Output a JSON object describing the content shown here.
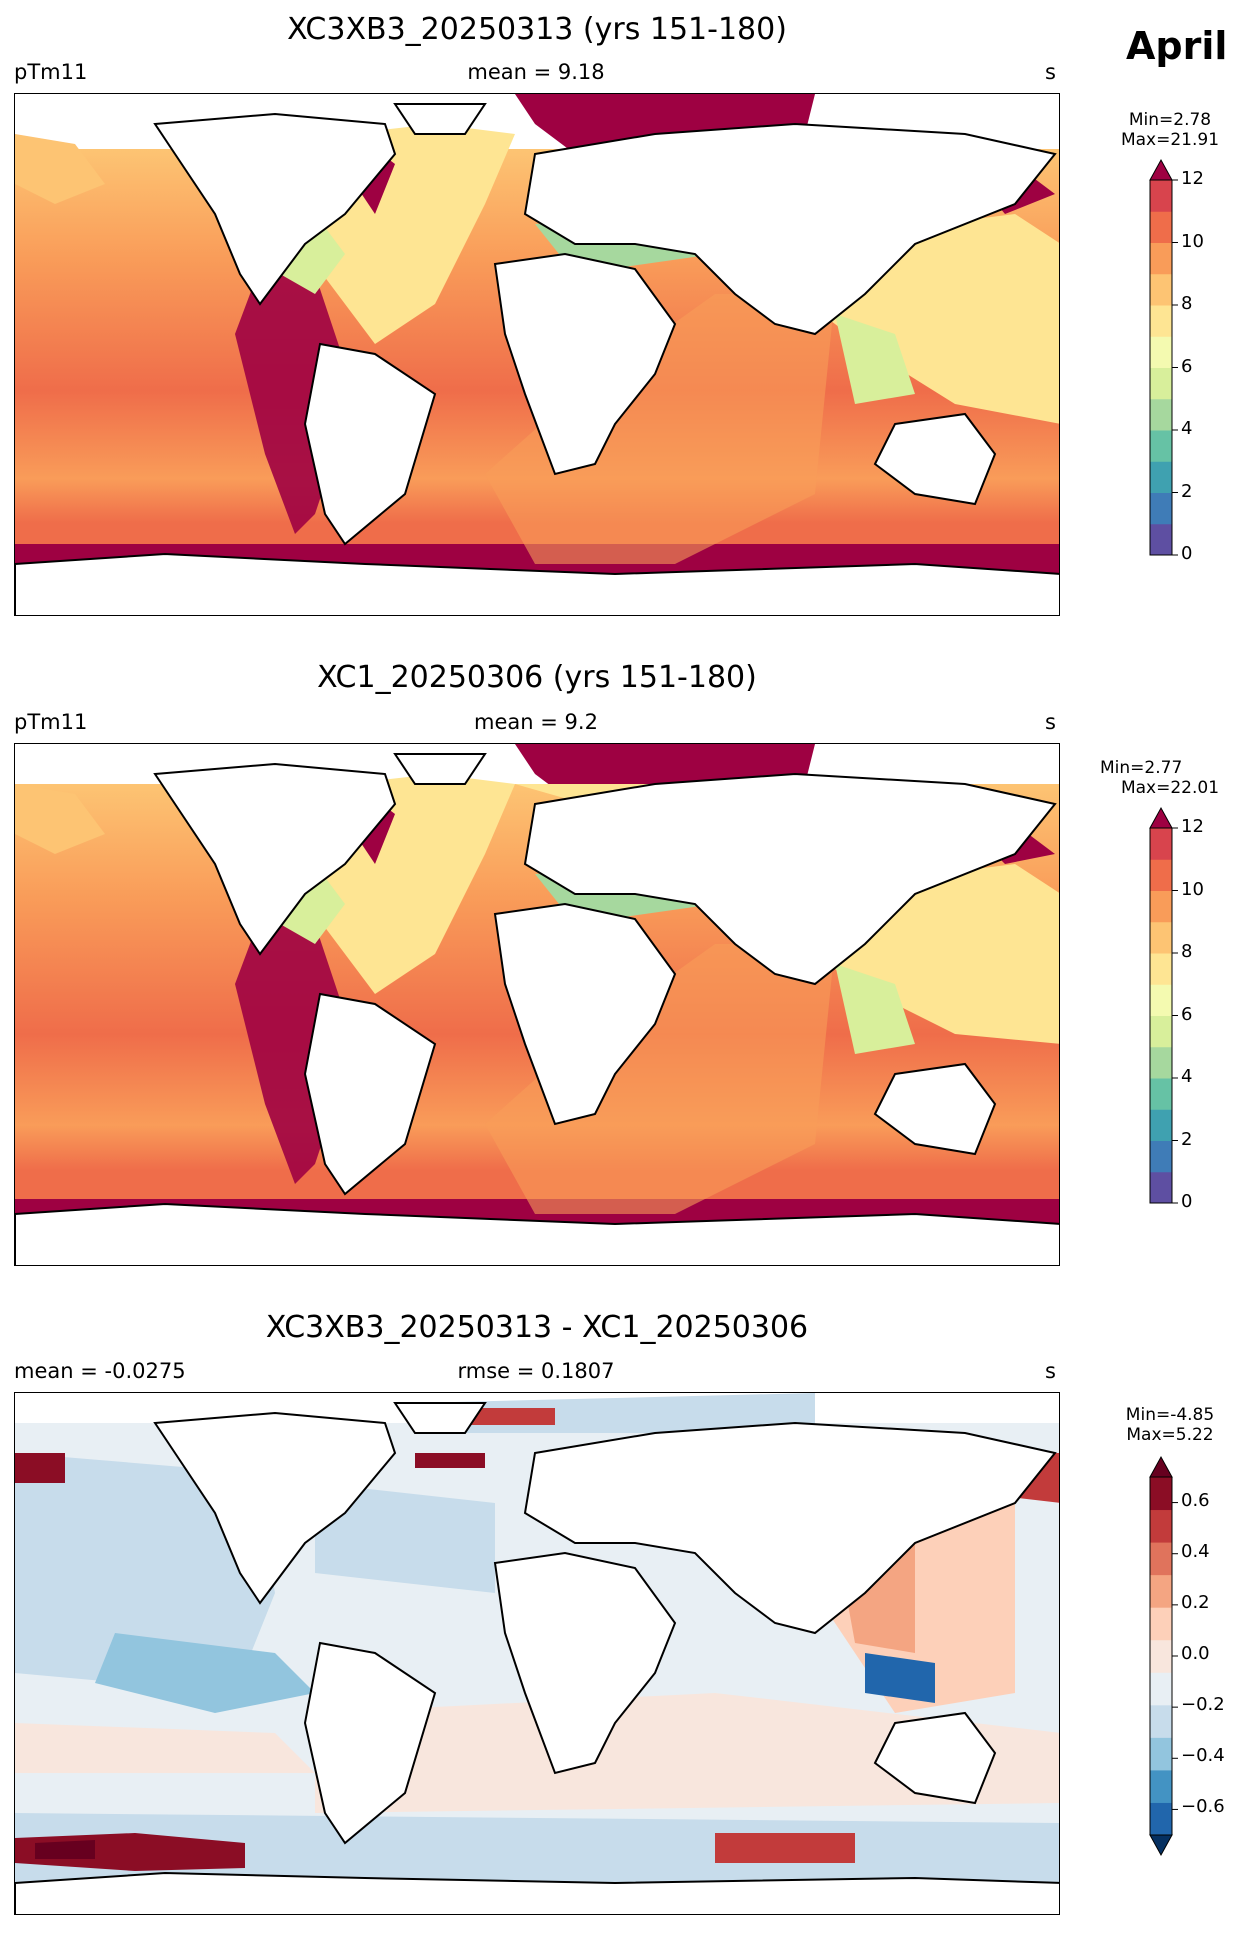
{
  "figure": {
    "month": "April"
  },
  "panels": [
    {
      "title": "XC3XB3_20250313 (yrs 151-180)",
      "left_label": "pTm11",
      "center_label": "mean = 9.18",
      "right_label": "s",
      "colorbar": {
        "min_text": "Min=2.78",
        "max_text": "Max=21.91",
        "ticks": [
          "0",
          "2",
          "4",
          "6",
          "8",
          "10",
          "12"
        ],
        "range": [
          0,
          12
        ],
        "extend": "max"
      }
    },
    {
      "title": "XC1_20250306 (yrs 151-180)",
      "left_label": "pTm11",
      "center_label": "mean = 9.2",
      "right_label": "s",
      "colorbar": {
        "min_text": "Min=2.77",
        "max_text": "Max=22.01",
        "ticks": [
          "0",
          "2",
          "4",
          "6",
          "8",
          "10",
          "12"
        ],
        "range": [
          0,
          12
        ],
        "extend": "max"
      }
    },
    {
      "title": "XC3XB3_20250313 - XC1_20250306",
      "left_label": "mean = -0.0275",
      "center_label": "rmse = 0.1807",
      "right_label": "s",
      "colorbar": {
        "min_text": "Min=-4.85",
        "max_text": "Max=5.22",
        "ticks": [
          "0.6",
          "0.4",
          "0.2",
          "0.0",
          "−0.2",
          "−0.4",
          "−0.6"
        ],
        "range": [
          -0.7,
          0.7
        ],
        "extend": "both"
      }
    }
  ],
  "colors": {
    "seq": [
      "#5e4fa2",
      "#3f7cb7",
      "#3fa1b0",
      "#66c2a5",
      "#a6d89e",
      "#d8ef9b",
      "#f4fab0",
      "#fee593",
      "#fdc473",
      "#f99c59",
      "#ef6d4a",
      "#d8444d",
      "#9e0142"
    ],
    "div": [
      "#053061",
      "#2166ac",
      "#4393c3",
      "#92c5de",
      "#c7dceb",
      "#e8eff4",
      "#f8e6dd",
      "#fdd0b9",
      "#f4a582",
      "#e0735c",
      "#c23b3b",
      "#8b0d25",
      "#67001f"
    ]
  }
}
